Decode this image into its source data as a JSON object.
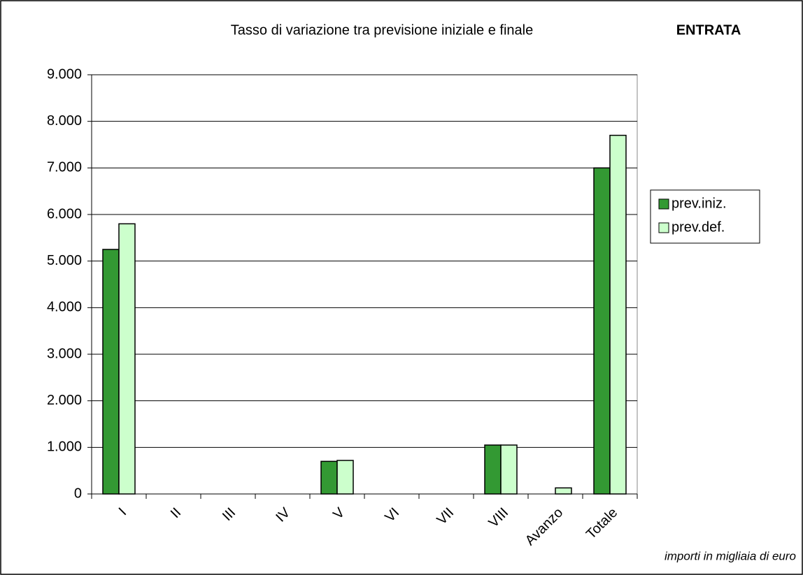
{
  "chart_data": {
    "type": "bar",
    "title": "Tasso di variazione tra previsione iniziale e finale",
    "subtitle": "ENTRATA",
    "annotation": "importi in migliaia di euro",
    "categories": [
      "I",
      "II",
      "III",
      "IV",
      "V",
      "VI",
      "VII",
      "VIII",
      "Avanzo",
      "Totale"
    ],
    "series": [
      {
        "name": "prev.iniz.",
        "color": "#339933",
        "values": [
          5250,
          0,
          0,
          0,
          700,
          0,
          0,
          1050,
          0,
          7000
        ]
      },
      {
        "name": "prev.def.",
        "color": "#ccffcc",
        "values": [
          5800,
          0,
          0,
          0,
          720,
          0,
          0,
          1050,
          130,
          7700
        ]
      }
    ],
    "ylim": [
      0,
      9000
    ],
    "yticks": [
      0,
      {
        "value": 1000,
        "label": "1.000"
      },
      {
        "value": 2000,
        "label": "2.000"
      },
      {
        "value": 3000,
        "label": "3.000"
      },
      {
        "value": 4000,
        "label": "4.000"
      },
      {
        "value": 5000,
        "label": "5.000"
      },
      {
        "value": 6000,
        "label": "6.000"
      },
      {
        "value": 7000,
        "label": "7.000"
      },
      {
        "value": 8000,
        "label": "8.000"
      },
      {
        "value": 9000,
        "label": "9.000"
      }
    ],
    "grid": true,
    "legend": "right"
  }
}
